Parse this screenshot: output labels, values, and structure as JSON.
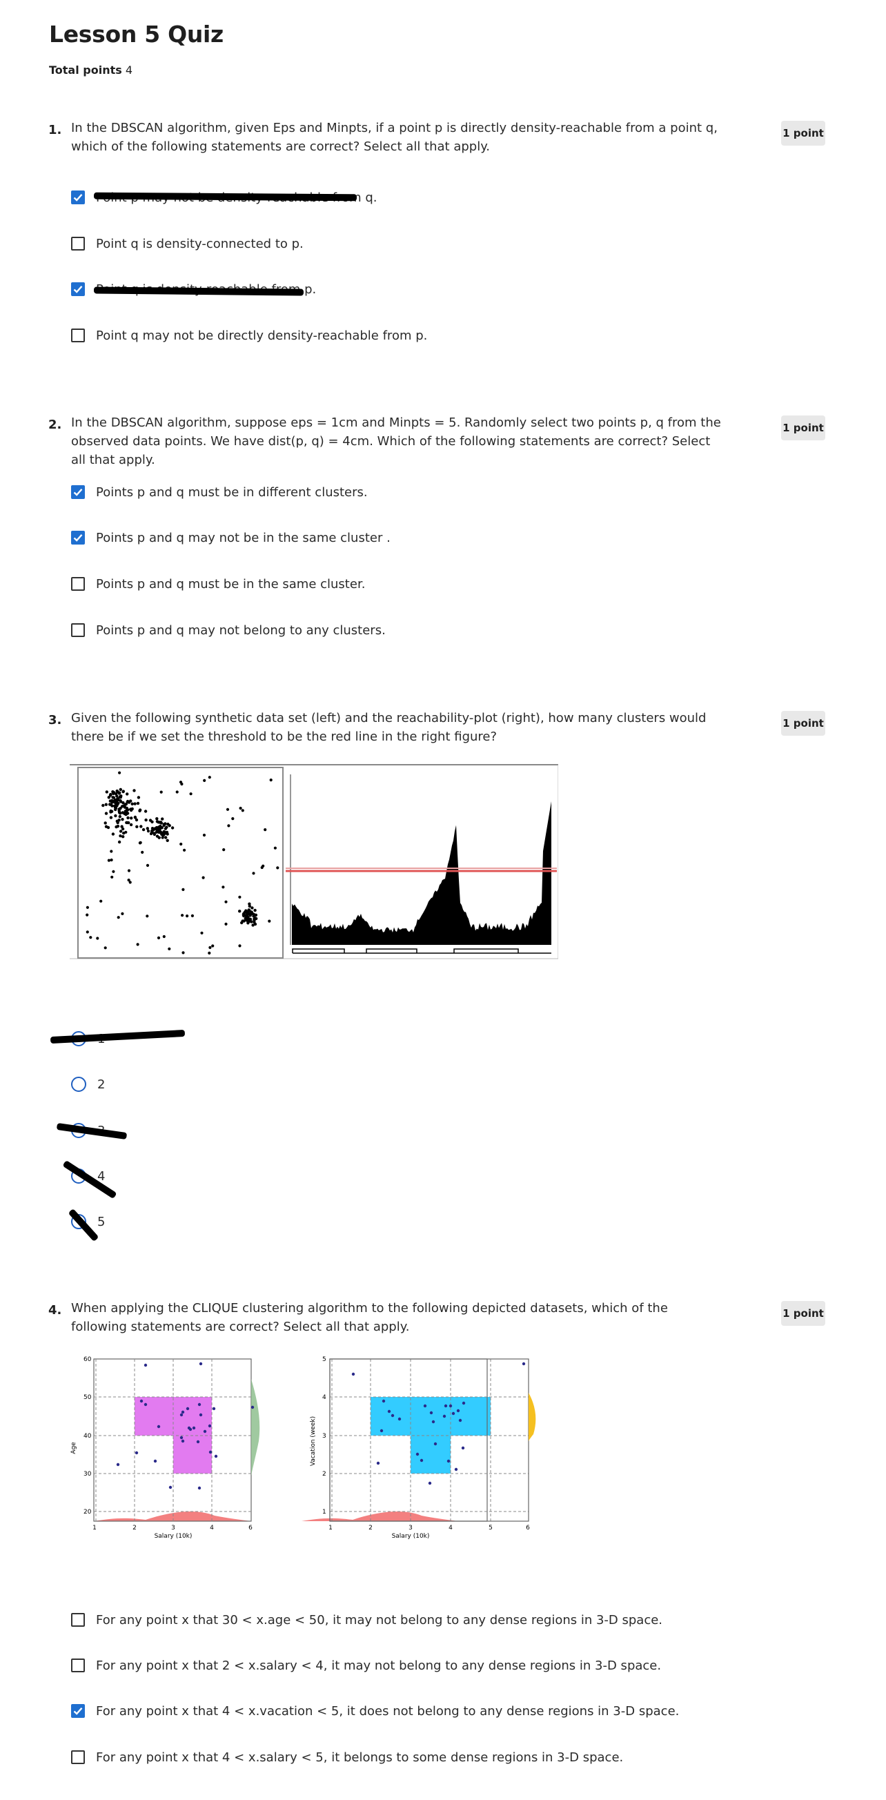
{
  "quiz": {
    "title": "Lesson 5 Quiz",
    "total_label": "Total points",
    "total_value": "4"
  },
  "questions": [
    {
      "number": "1.",
      "text": "In the DBSCAN algorithm, given Eps and Minpts, if a point p is directly density-reachable from a point q, which of the following statements are correct? Select all that apply.",
      "points": "1 point",
      "options": [
        {
          "label": "Point p may not be density-reachable from q.",
          "checked": true
        },
        {
          "label": "Point q is density-connected to p.",
          "checked": false
        },
        {
          "label": "Point q is density-reachable from p.",
          "checked": true
        },
        {
          "label": "Point q may not be directly density-reachable from p.",
          "checked": false
        }
      ]
    },
    {
      "number": "2.",
      "text": "In the DBSCAN algorithm, suppose eps = 1cm and Minpts = 5. Randomly select two points p, q from the observed data points. We have dist(p, q) = 4cm. Which of the following statements are correct? Select all that apply.",
      "points": "1 point",
      "options": [
        {
          "label": "Points p and q must be in different clusters.",
          "checked": true
        },
        {
          "label": "Points p and q may not be in the same cluster .",
          "checked": true
        },
        {
          "label": "Points p and q must be in the same cluster.",
          "checked": false
        },
        {
          "label": "Points p and q may not belong to any clusters.",
          "checked": false
        }
      ]
    },
    {
      "number": "3.",
      "text": "Given the following synthetic data set (left) and the reachability-plot (right), how many clusters would there be if we set the threshold to be the red line in the right figure?",
      "points": "1 point",
      "options": [
        {
          "label": "1",
          "selected": true
        },
        {
          "label": "2",
          "selected": false
        },
        {
          "label": "3",
          "selected": false
        },
        {
          "label": "4",
          "selected": false
        },
        {
          "label": "5",
          "selected": false
        }
      ]
    },
    {
      "number": "4.",
      "text": "When applying the CLIQUE clustering algorithm to the following depicted datasets, which of the following statements are correct? Select all that apply.",
      "points": "1 point",
      "options": [
        {
          "label": "For any point x that 30 < x.age < 50, it may not belong to any dense regions in 3-D space.",
          "checked": false
        },
        {
          "label": "For any point x that 2 < x.salary < 4, it may not belong to any dense regions in 3-D space.",
          "checked": false
        },
        {
          "label": "For any point x that 4 < x.vacation < 5, it does not belong to any dense regions in 3-D space.",
          "checked": true
        },
        {
          "label": "For any point x that 4 < x.salary < 5, it belongs to some dense regions in 3-D space.",
          "checked": false
        }
      ]
    }
  ],
  "clique_figure": {
    "left_xlabel": "Salary (10k)",
    "left_ylabel": "Age",
    "left_yticks": [
      "20",
      "30",
      "40",
      "50",
      "60"
    ],
    "right_xlabel": "Salary (10k)",
    "right_ylabel": "Vacation (week)",
    "right_yticks": [
      "1",
      "2",
      "3",
      "4",
      "5"
    ],
    "xticks": [
      "1",
      "2",
      "3",
      "4",
      "5",
      "6"
    ],
    "colors": {
      "age_dense": "#e27bf0",
      "vacation_dense": "#33ccff"
    }
  },
  "colors": {
    "accent": "#1f6fd0",
    "threshold": "#e05555"
  }
}
